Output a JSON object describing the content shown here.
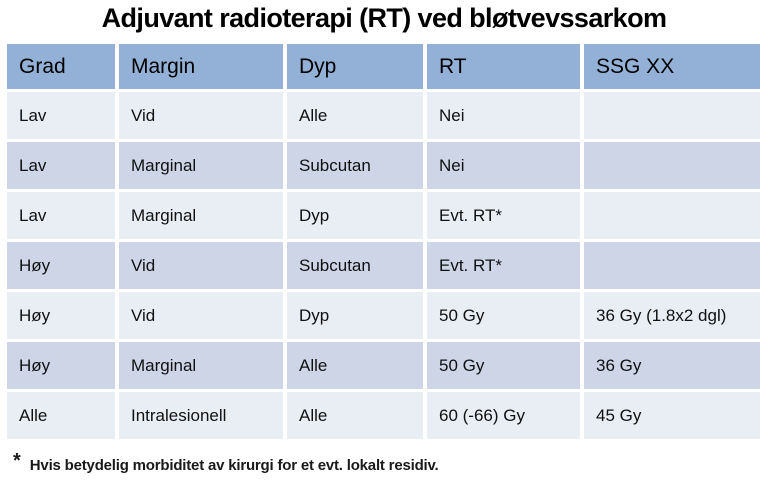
{
  "title": "Adjuvant radioterapi (RT) ved bløtvevssarkom",
  "table": {
    "columns": [
      "Grad",
      "Margin",
      "Dyp",
      "RT",
      "SSG XX"
    ],
    "rows": [
      [
        "Lav",
        "Vid",
        "Alle",
        "Nei",
        ""
      ],
      [
        "Lav",
        "Marginal",
        "Subcutan",
        "Nei",
        ""
      ],
      [
        "Lav",
        "Marginal",
        "Dyp",
        "Evt. RT*",
        ""
      ],
      [
        "Høy",
        "Vid",
        "Subcutan",
        "Evt. RT*",
        ""
      ],
      [
        "Høy",
        "Vid",
        "Dyp",
        "50 Gy",
        "36 Gy (1.8x2 dgl)"
      ],
      [
        "Høy",
        "Marginal",
        "Alle",
        "50 Gy",
        "36 Gy"
      ],
      [
        "Alle",
        "Intralesionell",
        "Alle",
        "60 (-66) Gy",
        "45 Gy"
      ]
    ]
  },
  "footnote": {
    "marker": "*",
    "text": "Hvis betydelig morbiditet av kirurgi for et evt. lokalt residiv."
  },
  "colors": {
    "header_bg": "#93B1D7",
    "row_light": "#E9EDF4",
    "row_dark": "#CDD5E7",
    "separator": "#FFFFFF",
    "text": "#111111"
  },
  "chart_data": {
    "type": "table",
    "title": "Adjuvant radioterapi (RT) ved bløtvevssarkom",
    "columns": [
      "Grad",
      "Margin",
      "Dyp",
      "RT",
      "SSG XX"
    ],
    "rows": [
      [
        "Lav",
        "Vid",
        "Alle",
        "Nei",
        ""
      ],
      [
        "Lav",
        "Marginal",
        "Subcutan",
        "Nei",
        ""
      ],
      [
        "Lav",
        "Marginal",
        "Dyp",
        "Evt. RT*",
        ""
      ],
      [
        "Høy",
        "Vid",
        "Subcutan",
        "Evt. RT*",
        ""
      ],
      [
        "Høy",
        "Vid",
        "Dyp",
        "50 Gy",
        "36 Gy (1.8x2 dgl)"
      ],
      [
        "Høy",
        "Marginal",
        "Alle",
        "50 Gy",
        "36 Gy"
      ],
      [
        "Alle",
        "Intralesionell",
        "Alle",
        "60 (-66) Gy",
        "45 Gy"
      ]
    ]
  }
}
